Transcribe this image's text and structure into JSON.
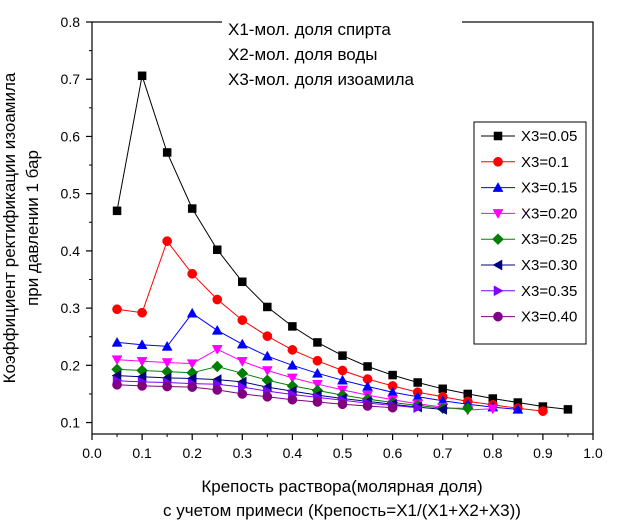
{
  "chart_data": {
    "type": "scatter",
    "title": "",
    "xlabel_line1": "Крепость раствора(молярная доля)",
    "xlabel_line2": "с учетом примеси (Крепость=X1/(X1+X2+X3))",
    "ylabel_line1": "Коэффициент ректификации изоамила",
    "ylabel_line2": "при давлении 1 бар",
    "xlim": [
      0.0,
      1.0
    ],
    "ylim": [
      0.08,
      0.8
    ],
    "xticks": [
      "0.0",
      "0.1",
      "0.2",
      "0.3",
      "0.4",
      "0.5",
      "0.6",
      "0.7",
      "0.8",
      "0.9",
      "1.0"
    ],
    "yticks": [
      "0.1",
      "0.2",
      "0.3",
      "0.4",
      "0.5",
      "0.6",
      "0.7",
      "0.8"
    ],
    "annotations": [
      "X1-мол. доля спирта",
      "X2-мол. доля воды",
      "X3-мол. доля изоамила"
    ],
    "legend_position": "right",
    "series": [
      {
        "name": "X3=0.05",
        "color": "#000000",
        "marker": "square",
        "x": [
          0.05,
          0.1,
          0.15,
          0.2,
          0.25,
          0.3,
          0.35,
          0.4,
          0.45,
          0.5,
          0.55,
          0.6,
          0.65,
          0.7,
          0.75,
          0.8,
          0.85,
          0.9,
          0.95
        ],
        "y": [
          0.47,
          0.706,
          0.572,
          0.474,
          0.402,
          0.346,
          0.302,
          0.268,
          0.24,
          0.217,
          0.198,
          0.183,
          0.17,
          0.159,
          0.15,
          0.142,
          0.135,
          0.128,
          0.123
        ]
      },
      {
        "name": "X3=0.1",
        "color": "#ff0000",
        "marker": "circle",
        "x": [
          0.05,
          0.1,
          0.15,
          0.2,
          0.25,
          0.3,
          0.35,
          0.4,
          0.45,
          0.5,
          0.55,
          0.6,
          0.65,
          0.7,
          0.75,
          0.8,
          0.85,
          0.9
        ],
        "y": [
          0.298,
          0.292,
          0.417,
          0.36,
          0.315,
          0.279,
          0.251,
          0.227,
          0.208,
          0.191,
          0.176,
          0.164,
          0.153,
          0.145,
          0.137,
          0.131,
          0.125,
          0.12
        ]
      },
      {
        "name": "X3=0.15",
        "color": "#0000ff",
        "marker": "triangle-up",
        "x": [
          0.05,
          0.1,
          0.15,
          0.2,
          0.25,
          0.3,
          0.35,
          0.4,
          0.45,
          0.5,
          0.55,
          0.6,
          0.65,
          0.7,
          0.75,
          0.8,
          0.85
        ],
        "y": [
          0.24,
          0.236,
          0.233,
          0.291,
          0.261,
          0.237,
          0.216,
          0.2,
          0.186,
          0.174,
          0.163,
          0.153,
          0.145,
          0.138,
          0.132,
          0.127,
          0.123
        ]
      },
      {
        "name": "X3=0.20",
        "color": "#ff00ff",
        "marker": "triangle-down",
        "x": [
          0.05,
          0.1,
          0.15,
          0.2,
          0.25,
          0.3,
          0.35,
          0.4,
          0.45,
          0.5,
          0.55,
          0.6,
          0.65,
          0.7,
          0.75,
          0.8
        ],
        "y": [
          0.21,
          0.207,
          0.205,
          0.203,
          0.228,
          0.207,
          0.191,
          0.178,
          0.167,
          0.157,
          0.148,
          0.14,
          0.133,
          0.127,
          0.122,
          0.124
        ]
      },
      {
        "name": "X3=0.25",
        "color": "#008000",
        "marker": "diamond",
        "x": [
          0.05,
          0.1,
          0.15,
          0.2,
          0.25,
          0.3,
          0.35,
          0.4,
          0.45,
          0.5,
          0.55,
          0.6,
          0.65,
          0.7,
          0.75
        ],
        "y": [
          0.193,
          0.191,
          0.189,
          0.187,
          0.198,
          0.186,
          0.174,
          0.164,
          0.156,
          0.148,
          0.141,
          0.135,
          0.13,
          0.125,
          0.125
        ]
      },
      {
        "name": "X3=0.30",
        "color": "#000080",
        "marker": "triangle-left",
        "x": [
          0.05,
          0.1,
          0.15,
          0.2,
          0.25,
          0.3,
          0.35,
          0.4,
          0.45,
          0.5,
          0.55,
          0.6,
          0.65,
          0.7
        ],
        "y": [
          0.182,
          0.18,
          0.178,
          0.177,
          0.175,
          0.171,
          0.162,
          0.155,
          0.148,
          0.142,
          0.137,
          0.132,
          0.127,
          0.123
        ]
      },
      {
        "name": "X3=0.35",
        "color": "#8000ff",
        "marker": "triangle-right",
        "x": [
          0.05,
          0.1,
          0.15,
          0.2,
          0.25,
          0.3,
          0.35,
          0.4,
          0.45,
          0.5,
          0.55,
          0.6,
          0.65
        ],
        "y": [
          0.173,
          0.171,
          0.17,
          0.168,
          0.167,
          0.162,
          0.155,
          0.149,
          0.144,
          0.139,
          0.134,
          0.13,
          0.126
        ]
      },
      {
        "name": "X3=0.40",
        "color": "#800080",
        "marker": "circle",
        "x": [
          0.05,
          0.1,
          0.15,
          0.2,
          0.25,
          0.3,
          0.35,
          0.4,
          0.45,
          0.5,
          0.55,
          0.6
        ],
        "y": [
          0.166,
          0.164,
          0.163,
          0.162,
          0.157,
          0.15,
          0.145,
          0.14,
          0.136,
          0.132,
          0.129,
          0.126
        ]
      }
    ]
  }
}
